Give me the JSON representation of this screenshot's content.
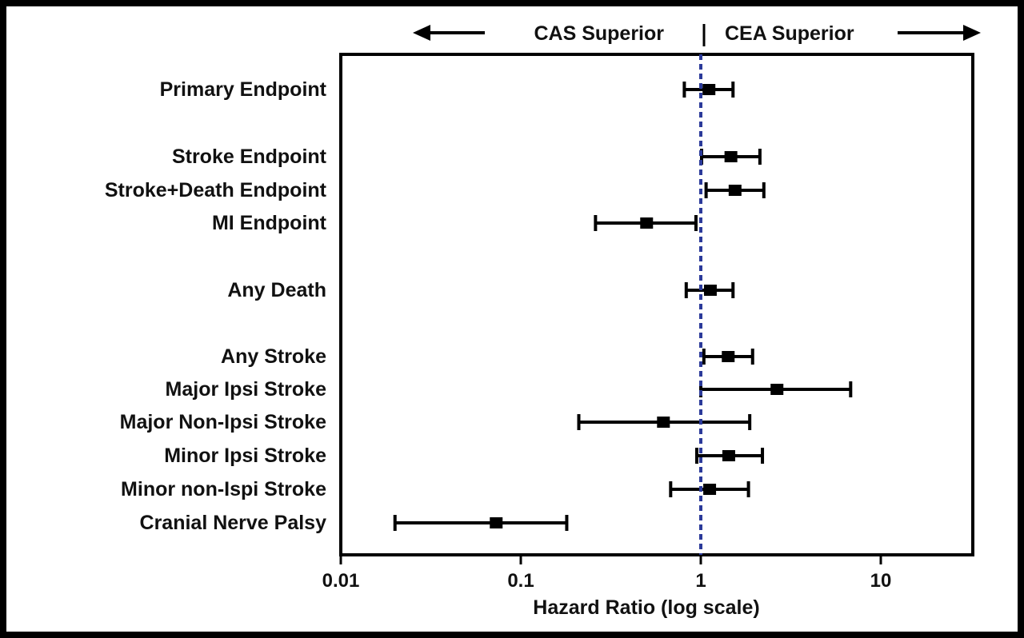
{
  "chart_data": {
    "type": "forest",
    "xscale": "log",
    "xlim": [
      0.01,
      30
    ],
    "xlabel": "Hazard Ratio (log scale)",
    "xticks": [
      0.01,
      0.1,
      1,
      10
    ],
    "xtick_labels": [
      "0.01",
      "0.1",
      "1",
      "10"
    ],
    "reference_line": 1,
    "header_left": "CAS Superior",
    "header_right": "CEA Superior",
    "rows": [
      {
        "label": "Primary Endpoint",
        "hr": 1.11,
        "lower": 0.81,
        "upper": 1.51
      },
      {
        "label": "Stroke Endpoint",
        "hr": 1.47,
        "lower": 1.01,
        "upper": 2.13
      },
      {
        "label": "Stroke+Death Endpoint",
        "hr": 1.55,
        "lower": 1.07,
        "upper": 2.24
      },
      {
        "label": "MI Endpoint",
        "hr": 0.5,
        "lower": 0.26,
        "upper": 0.94
      },
      {
        "label": "Any Death",
        "hr": 1.13,
        "lower": 0.83,
        "upper": 1.51
      },
      {
        "label": "Any Stroke",
        "hr": 1.42,
        "lower": 1.04,
        "upper": 1.94
      },
      {
        "label": "Major Ipsi Stroke",
        "hr": 2.65,
        "lower": 1.0,
        "upper": 6.8
      },
      {
        "label": "Major Non-Ipsi Stroke",
        "hr": 0.62,
        "lower": 0.21,
        "upper": 1.87
      },
      {
        "label": "Minor Ipsi Stroke",
        "hr": 1.43,
        "lower": 0.95,
        "upper": 2.2
      },
      {
        "label": "Minor non-Ispi Stroke",
        "hr": 1.12,
        "lower": 0.68,
        "upper": 1.84
      },
      {
        "label": "Cranial Nerve Palsy",
        "hr": 0.073,
        "lower": 0.02,
        "upper": 0.18
      }
    ]
  },
  "colors": {
    "frame": "#000000",
    "background": "#ffffff",
    "marks": "#000000",
    "reference_line": "#2b3a9a"
  }
}
